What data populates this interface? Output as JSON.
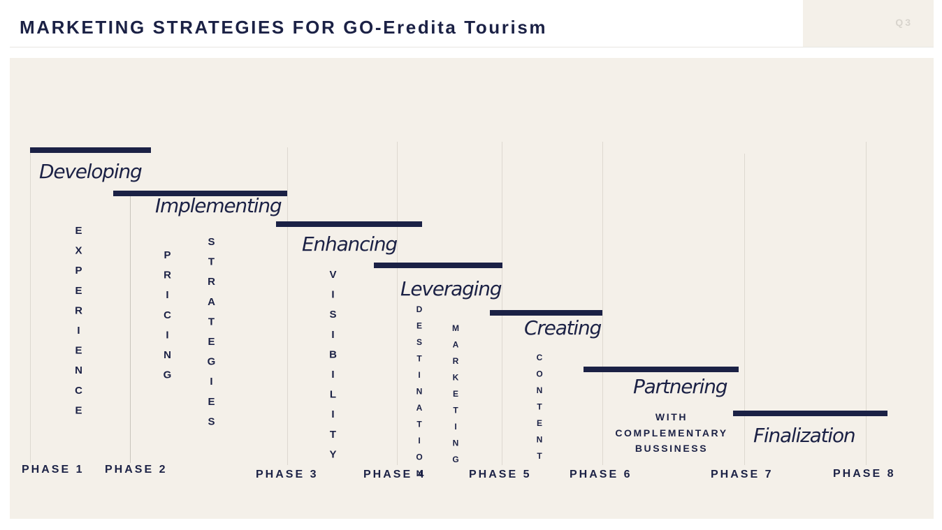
{
  "header": {
    "title": "MARKETING STRATEGIES FOR GO-Eredita Tourism",
    "page_tag": "Q3"
  },
  "steps": [
    {
      "verb": "Developing",
      "label": "EXPERIENCE"
    },
    {
      "verb": "Implementing",
      "labels": [
        "PRICING",
        "STRATEGIES"
      ]
    },
    {
      "verb": "Enhancing",
      "label": "VISIBILITY"
    },
    {
      "verb": "Leveraging",
      "labels": [
        "DESTINATION",
        "MARKETING"
      ]
    },
    {
      "verb": "Creating",
      "label": "CONTENT"
    },
    {
      "verb": "Partnering",
      "note_lines": [
        "WITH",
        "COMPLEMENTARY",
        "BUSSINESS"
      ]
    },
    {
      "verb": "Finalization"
    }
  ],
  "phases": [
    "PHASE 1",
    "PHASE 2",
    "PHASE 3",
    "PHASE 4",
    "PHASE 5",
    "PHASE 6",
    "PHASE 7",
    "PHASE 8"
  ],
  "colors": {
    "ink": "#1b2145",
    "panel": "#f4f0e9",
    "gridline": "#ddd8d0"
  }
}
